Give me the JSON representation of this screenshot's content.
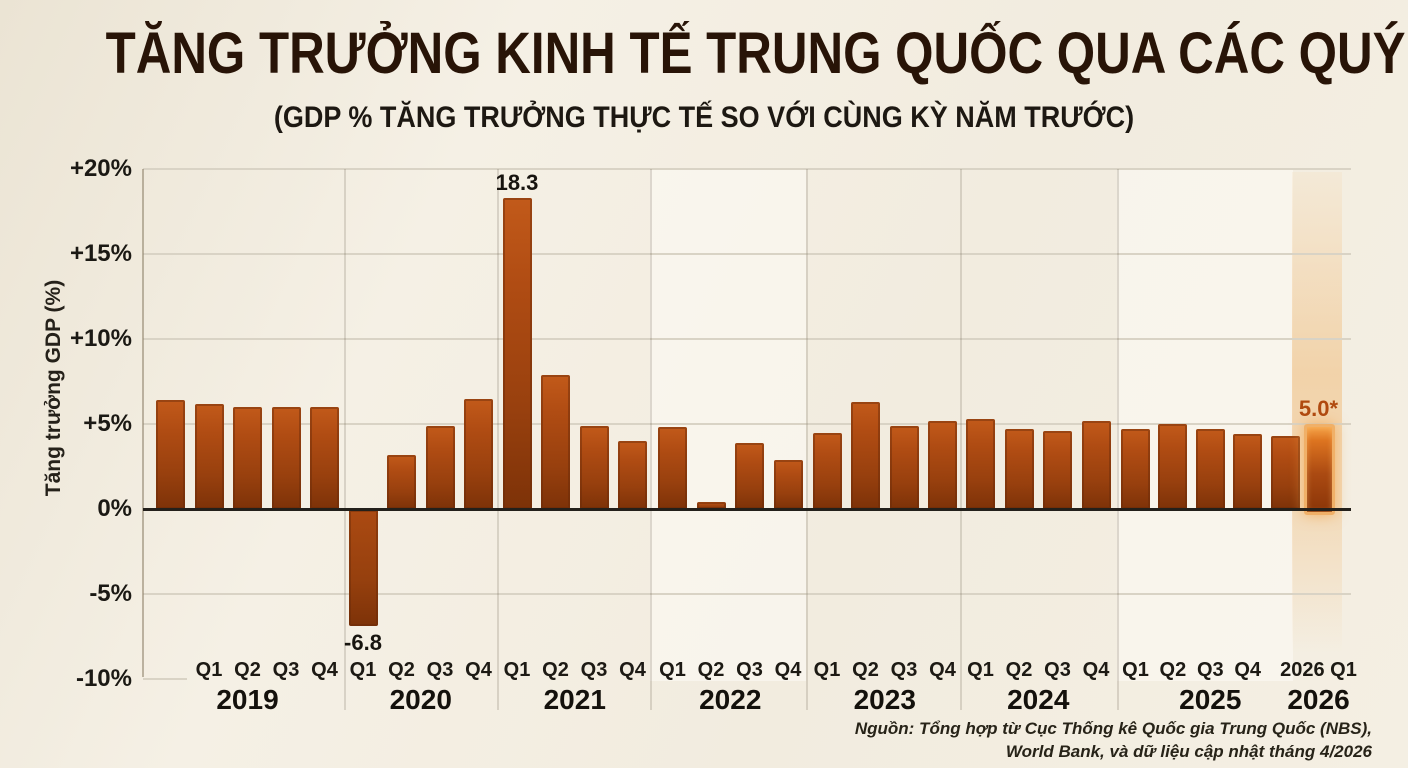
{
  "header": {
    "title": "TĂNG TRƯỞNG KINH TẾ TRUNG QUỐC QUA CÁC QUÝ",
    "subtitle": "(GDP % TĂNG TRƯỞNG THỰC TẾ SO VỚI CÙNG KỲ NĂM TRƯỚC)"
  },
  "source": {
    "line1": "Nguồn: Tổng hợp từ Cục Thống kê Quốc gia Trung Quốc (NBS),",
    "line2": "World Bank, và dữ liệu cập nhật tháng 4/2026"
  },
  "chart_data": {
    "type": "bar",
    "title": "TĂNG TRƯỞNG KINH TẾ TRUNG QUỐC QUA CÁC QUÝ",
    "subtitle": "(GDP % TĂNG TRƯỞNG THỰC TẾ SO VỚI CÙNG KỲ NĂM TRƯỚC)",
    "y_axis_title": "Tăng trưởng GDP (%)",
    "ylim": [
      -10,
      20
    ],
    "grid": true,
    "y_ticks": [
      {
        "label": "+20%",
        "value": 20
      },
      {
        "label": "+15%",
        "value": 15
      },
      {
        "label": "+10%",
        "value": 10
      },
      {
        "label": "+5%",
        "value": 5
      },
      {
        "label": "0%",
        "value": 0
      },
      {
        "label": "-5%",
        "value": -5
      },
      {
        "label": "-10%",
        "value": -10
      }
    ],
    "highlight_group": "2026",
    "groups": [
      {
        "year": "2019",
        "bars": [
          {
            "q": "",
            "v": 6.4
          },
          {
            "q": "Q1",
            "v": 6.2
          },
          {
            "q": "Q2",
            "v": 6.0
          },
          {
            "q": "Q3",
            "v": 6.0
          },
          {
            "q": "Q4",
            "v": 6.0
          }
        ]
      },
      {
        "year": "2020",
        "bars": [
          {
            "q": "Q1",
            "v": -6.8,
            "label": "-6.8",
            "label_pos": "below"
          },
          {
            "q": "Q2",
            "v": 3.2
          },
          {
            "q": "Q3",
            "v": 4.9
          },
          {
            "q": "Q4",
            "v": 6.5
          }
        ]
      },
      {
        "year": "2021",
        "bars": [
          {
            "q": "Q1",
            "v": 18.3,
            "label": "18.3",
            "label_pos": "above"
          },
          {
            "q": "Q2",
            "v": 7.9
          },
          {
            "q": "Q3",
            "v": 4.9
          },
          {
            "q": "Q4",
            "v": 4.0
          }
        ]
      },
      {
        "year": "2022",
        "bars": [
          {
            "q": "Q1",
            "v": 4.8
          },
          {
            "q": "Q2",
            "v": 0.4
          },
          {
            "q": "Q3",
            "v": 3.9
          },
          {
            "q": "Q4",
            "v": 2.9
          }
        ]
      },
      {
        "year": "2023",
        "bars": [
          {
            "q": "Q1",
            "v": 4.5
          },
          {
            "q": "Q2",
            "v": 6.3
          },
          {
            "q": "Q3",
            "v": 4.9
          },
          {
            "q": "Q4",
            "v": 5.2
          }
        ]
      },
      {
        "year": "2024",
        "bars": [
          {
            "q": "Q1",
            "v": 5.3
          },
          {
            "q": "Q2",
            "v": 4.7
          },
          {
            "q": "Q3",
            "v": 4.6
          },
          {
            "q": "Q4",
            "v": 5.2
          }
        ]
      },
      {
        "year": "2025",
        "bars": [
          {
            "q": "Q1",
            "v": 4.7
          },
          {
            "q": "Q2",
            "v": 5.0
          },
          {
            "q": "Q3",
            "v": 4.7
          },
          {
            "q": "Q4",
            "v": 4.4
          },
          {
            "q": "",
            "v": 4.3
          }
        ]
      },
      {
        "year": "2026",
        "bars": [
          {
            "q": "2026 Q1",
            "v": 5.0,
            "label": "5.0*",
            "label_pos": "above",
            "highlight": true
          }
        ]
      }
    ],
    "colors": {
      "bar_top": "#c25a1a",
      "bar_mid": "#ab4a12",
      "bar_bottom": "#7d3208",
      "highlight_border": "#f0b068",
      "highlight_band": "#f2c894",
      "accent_text": "#b04a10",
      "grid": "#d9d3c5",
      "axis": "#23201b",
      "background": "#f3eee3"
    }
  }
}
